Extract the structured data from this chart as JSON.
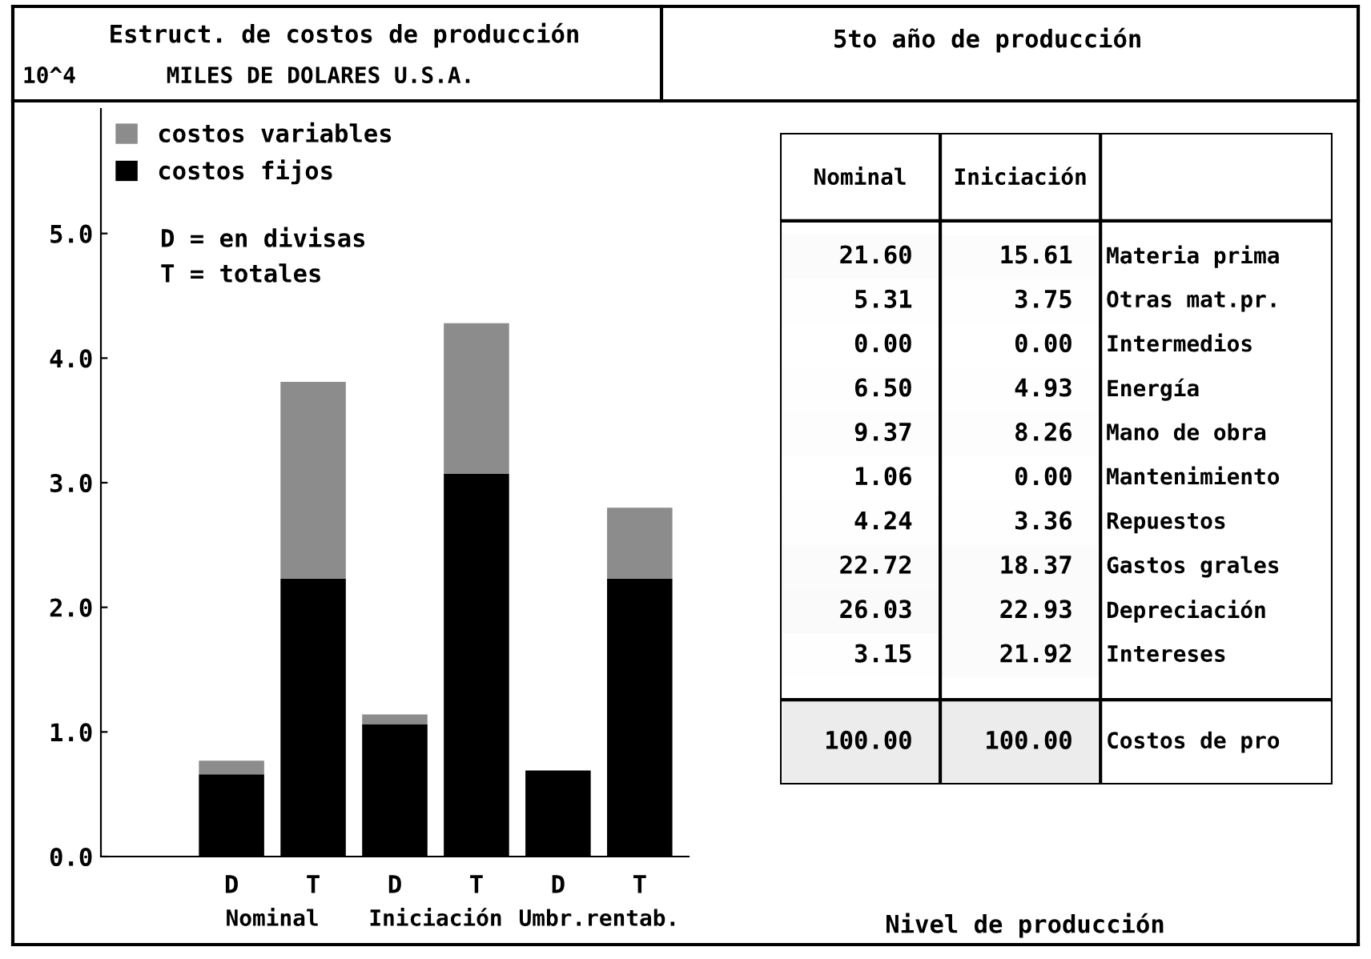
{
  "chart_data": [
    {
      "type": "bar",
      "title": "Estruct. de costos de producción",
      "subtitle": "MILES DE DOLARES U.S.A.",
      "ylabel": "10^4",
      "categories": [
        "D",
        "T",
        "D",
        "T",
        "D",
        "T"
      ],
      "stacked": true,
      "series": [
        {
          "name": "costos fijos",
          "color": "#000000",
          "values": [
            0.66,
            2.23,
            1.06,
            3.07,
            0.69,
            2.23
          ]
        },
        {
          "name": "costos variables",
          "color": "#8c8c8c",
          "values": [
            0.11,
            1.58,
            0.08,
            1.21,
            0.0,
            0.57
          ]
        }
      ],
      "ylim": [
        0,
        6.0
      ],
      "yticks": [
        {
          "value": 0,
          "label": "0.0"
        },
        {
          "value": 1,
          "label": "1.0"
        },
        {
          "value": 2,
          "label": "2.0"
        },
        {
          "value": 3,
          "label": "3.0"
        },
        {
          "value": 4,
          "label": "4.0"
        },
        {
          "value": 5,
          "label": "5.0"
        }
      ],
      "legend": "top left",
      "grid": false,
      "annotations": [
        "Nominal",
        "Iniciación",
        "Umbr.rentab.",
        "D = en divisas",
        "T = totales"
      ]
    },
    {
      "type": "heatmap",
      "title": "5to año de producción",
      "xlabel": "Nivel de producción",
      "data_labels": true,
      "categories": [
        "Nominal",
        "Iniciación"
      ],
      "y_categories": [
        "Materia prima",
        "Otras mat.pr.",
        "Intermedios",
        "Energía",
        "Mano de obra",
        "Mantenimiento",
        "Repuestos",
        "Gastos grales",
        "Depreciación",
        "Intereses",
        "Costos de pro"
      ],
      "cells": [
        [
          21.6,
          15.61
        ],
        [
          5.31,
          3.75
        ],
        [
          0,
          0
        ],
        [
          6.5,
          4.93
        ],
        [
          9.37,
          8.26
        ],
        [
          1.06,
          0
        ],
        [
          4.24,
          3.36
        ],
        [
          22.72,
          18.37
        ],
        [
          26.03,
          22.93
        ],
        [
          3.15,
          21.92
        ],
        [
          100,
          100
        ]
      ],
      "cell_labels": [
        [
          "21.60",
          "15.61"
        ],
        [
          "5.31",
          "3.75"
        ],
        [
          "0.00",
          "0.00"
        ],
        [
          "6.50",
          "4.93"
        ],
        [
          "9.37",
          "8.26"
        ],
        [
          "1.06",
          "0.00"
        ],
        [
          "4.24",
          "3.36"
        ],
        [
          "22.72",
          "18.37"
        ],
        [
          "26.03",
          "22.93"
        ],
        [
          "3.15",
          "21.92"
        ],
        [
          "100.00",
          "100.00"
        ]
      ]
    }
  ]
}
